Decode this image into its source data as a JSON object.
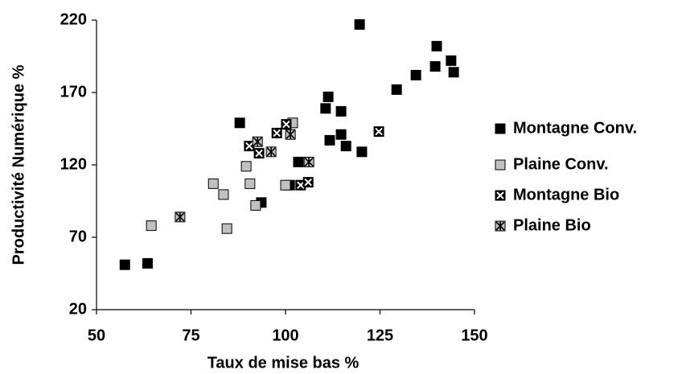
{
  "chart_data": {
    "type": "scatter",
    "xlabel": "Taux de mise bas %",
    "ylabel": "Productivité Numérique %",
    "xlim": [
      50,
      150
    ],
    "xticks": [
      50,
      75,
      100,
      125,
      150
    ],
    "ylim": [
      20,
      220
    ],
    "yticks": [
      20,
      70,
      120,
      170,
      220
    ],
    "grid": false,
    "legend": "right",
    "series": [
      {
        "name": "Montagne Conv.",
        "color": "#000000",
        "marker": "square",
        "x": [
          57.5,
          63.5,
          87.9,
          93.6,
          101.1,
          103.4,
          119.6,
          110.6,
          111.3,
          111.7,
          114.7,
          114.7,
          116,
          120.2,
          129.4,
          134.5,
          139.6,
          140,
          143.8,
          144.5
        ],
        "values": [
          51,
          52,
          149,
          94,
          106,
          122,
          217,
          159,
          167,
          137,
          157,
          141,
          133,
          129,
          172,
          182,
          188,
          202,
          192,
          184
        ]
      },
      {
        "name": "Plaine Conv.",
        "color": "#c0c0c0",
        "marker": "square",
        "x": [
          64.5,
          84.5,
          80.9,
          83.6,
          89.6,
          90.6,
          92.1,
          100,
          101.9
        ],
        "values": [
          78,
          76,
          107,
          99.5,
          119,
          107,
          92,
          106,
          149
        ]
      },
      {
        "name": "Montagne Bio",
        "color": "#000000",
        "marker": "square-x",
        "x": [
          90.4,
          93,
          97.7,
          100.2,
          104,
          106,
          124.7
        ],
        "values": [
          133,
          128,
          142,
          148,
          106,
          108,
          143
        ]
      },
      {
        "name": "Plaine Bio",
        "color": "#c0c0c0",
        "marker": "square-asterisk",
        "x": [
          72.1,
          92.6,
          96.2,
          101.3,
          106.2
        ],
        "values": [
          84,
          136,
          129,
          141,
          122
        ]
      }
    ]
  }
}
